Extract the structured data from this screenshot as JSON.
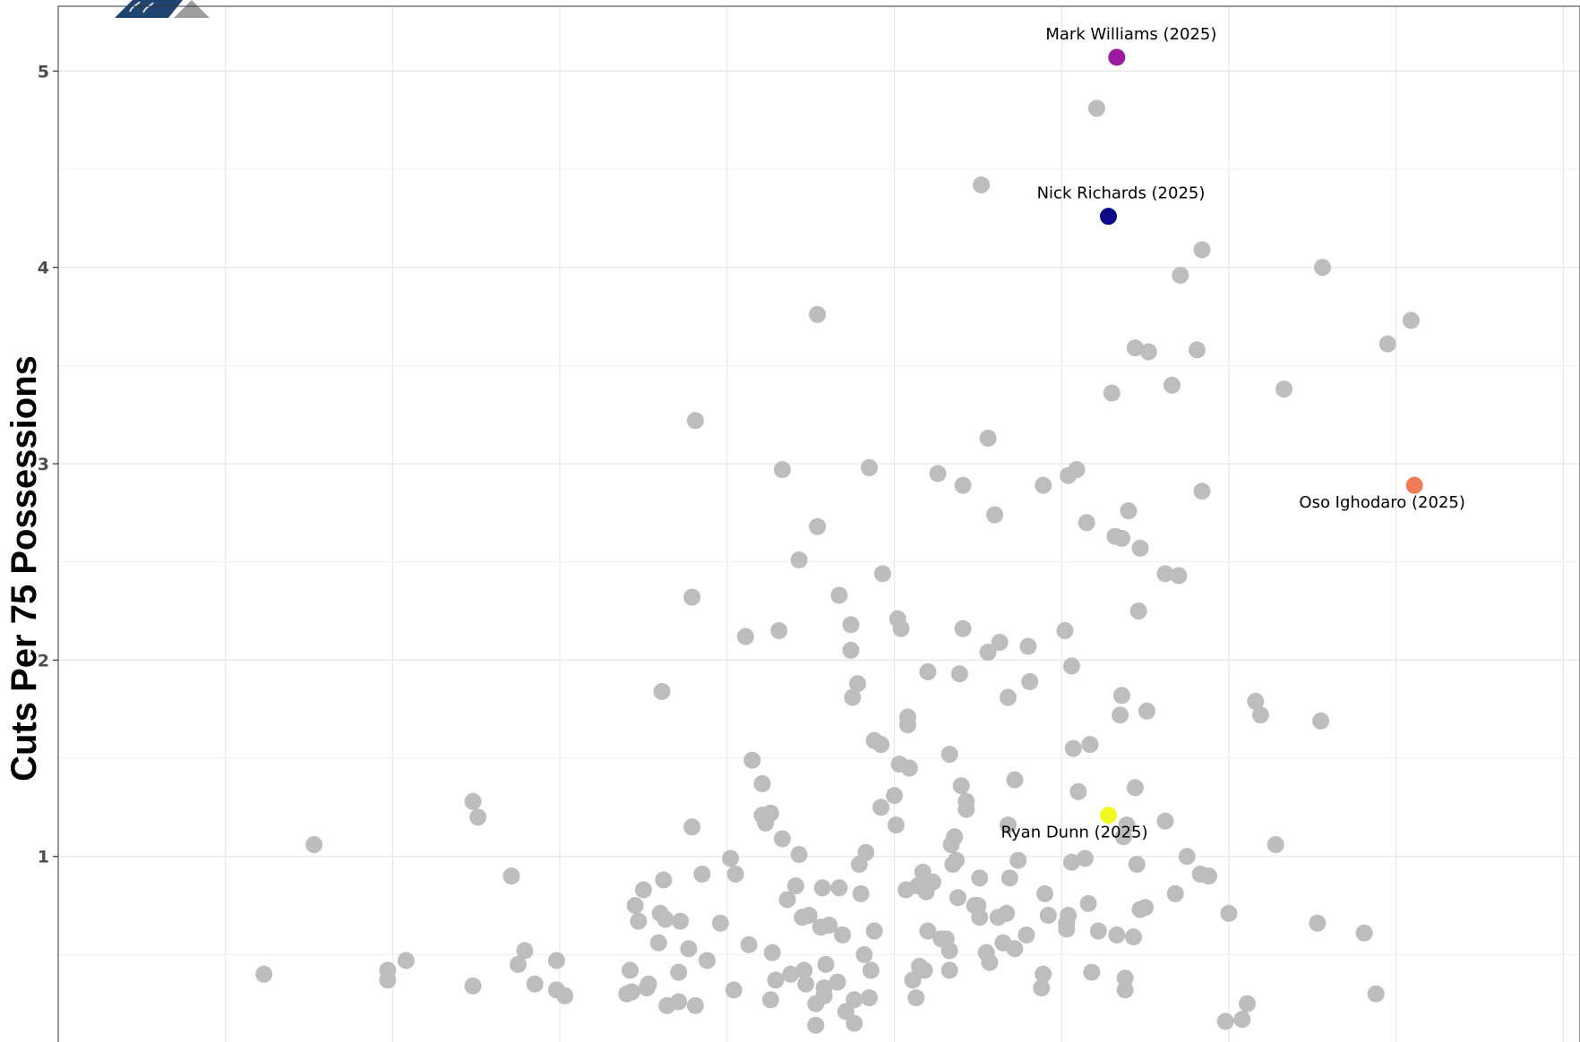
{
  "chart_data": {
    "type": "scatter",
    "title": "",
    "xlabel": "",
    "ylabel": "Cuts Per 75 Possessions",
    "xlim": [
      0.0,
      9.1
    ],
    "ylim": [
      -0.05,
      5.33
    ],
    "y_ticks": [
      1,
      2,
      3,
      4,
      5
    ],
    "y_tick_labels": [
      "1",
      "2",
      "3",
      "4",
      "5"
    ],
    "grid": true,
    "legend": "none",
    "background_color": "#bdbdbd",
    "background_points": [
      [
        1.23,
        0.4
      ],
      [
        1.97,
        0.42
      ],
      [
        1.97,
        0.37
      ],
      [
        2.08,
        0.47
      ],
      [
        1.53,
        1.06
      ],
      [
        2.48,
        0.34
      ],
      [
        2.48,
        1.28
      ],
      [
        2.51,
        1.2
      ],
      [
        2.71,
        0.9
      ],
      [
        2.75,
        0.45
      ],
      [
        2.79,
        0.52
      ],
      [
        2.85,
        0.35
      ],
      [
        2.98,
        0.47
      ],
      [
        2.98,
        0.32
      ],
      [
        3.03,
        0.29
      ],
      [
        3.4,
        0.3
      ],
      [
        3.42,
        0.42
      ],
      [
        3.43,
        0.31
      ],
      [
        3.45,
        0.75
      ],
      [
        3.47,
        0.67
      ],
      [
        3.5,
        0.83
      ],
      [
        3.52,
        0.33
      ],
      [
        3.53,
        0.35
      ],
      [
        3.59,
        0.56
      ],
      [
        3.6,
        0.71
      ],
      [
        3.62,
        0.88
      ],
      [
        3.63,
        0.68
      ],
      [
        3.64,
        0.24
      ],
      [
        3.61,
        1.84
      ],
      [
        3.71,
        0.26
      ],
      [
        3.71,
        0.41
      ],
      [
        3.72,
        0.67
      ],
      [
        3.77,
        0.53
      ],
      [
        3.81,
        0.24
      ],
      [
        3.79,
        1.15
      ],
      [
        3.79,
        2.32
      ],
      [
        3.81,
        3.22
      ],
      [
        3.85,
        0.91
      ],
      [
        3.88,
        0.47
      ],
      [
        3.96,
        0.66
      ],
      [
        4.02,
        0.99
      ],
      [
        4.04,
        0.32
      ],
      [
        4.05,
        0.91
      ],
      [
        4.11,
        2.12
      ],
      [
        4.13,
        0.55
      ],
      [
        4.15,
        1.49
      ],
      [
        4.21,
        1.37
      ],
      [
        4.21,
        1.21
      ],
      [
        4.23,
        1.17
      ],
      [
        4.26,
        0.27
      ],
      [
        4.26,
        1.22
      ],
      [
        4.27,
        0.51
      ],
      [
        4.29,
        0.37
      ],
      [
        4.31,
        2.15
      ],
      [
        4.33,
        2.97
      ],
      [
        4.33,
        1.09
      ],
      [
        4.36,
        0.78
      ],
      [
        4.38,
        0.4
      ],
      [
        4.41,
        0.85
      ],
      [
        4.43,
        1.01
      ],
      [
        4.43,
        2.51
      ],
      [
        4.45,
        0.69
      ],
      [
        4.46,
        0.42
      ],
      [
        4.47,
        0.35
      ],
      [
        4.49,
        0.7
      ],
      [
        4.53,
        0.25
      ],
      [
        4.53,
        0.14
      ],
      [
        4.54,
        3.76
      ],
      [
        4.54,
        2.68
      ],
      [
        4.56,
        0.64
      ],
      [
        4.57,
        0.84
      ],
      [
        4.58,
        0.33
      ],
      [
        4.58,
        0.29
      ],
      [
        4.59,
        0.45
      ],
      [
        4.61,
        0.65
      ],
      [
        4.66,
        0.36
      ],
      [
        4.67,
        2.33
      ],
      [
        4.67,
        0.84
      ],
      [
        4.69,
        0.6
      ],
      [
        4.71,
        0.21
      ],
      [
        4.74,
        2.18
      ],
      [
        4.74,
        2.05
      ],
      [
        4.75,
        1.81
      ],
      [
        4.76,
        0.27
      ],
      [
        4.76,
        0.15
      ],
      [
        4.78,
        1.88
      ],
      [
        4.79,
        0.96
      ],
      [
        4.8,
        0.81
      ],
      [
        4.82,
        0.5
      ],
      [
        4.83,
        1.02
      ],
      [
        4.85,
        0.28
      ],
      [
        4.85,
        2.98
      ],
      [
        4.86,
        0.42
      ],
      [
        4.88,
        0.62
      ],
      [
        4.88,
        1.59
      ],
      [
        4.92,
        1.57
      ],
      [
        4.92,
        1.25
      ],
      [
        4.93,
        2.44
      ],
      [
        5.0,
        1.31
      ],
      [
        5.01,
        1.16
      ],
      [
        5.02,
        2.21
      ],
      [
        5.03,
        1.47
      ],
      [
        5.04,
        2.16
      ],
      [
        5.07,
        0.83
      ],
      [
        5.08,
        1.67
      ],
      [
        5.08,
        1.71
      ],
      [
        5.09,
        1.45
      ],
      [
        5.11,
        0.37
      ],
      [
        5.13,
        0.28
      ],
      [
        5.14,
        0.85
      ],
      [
        5.15,
        0.44
      ],
      [
        5.17,
        0.92
      ],
      [
        5.18,
        0.42
      ],
      [
        5.19,
        0.82
      ],
      [
        5.2,
        0.62
      ],
      [
        5.2,
        1.94
      ],
      [
        5.23,
        0.87
      ],
      [
        5.26,
        2.95
      ],
      [
        5.28,
        0.58
      ],
      [
        5.31,
        0.58
      ],
      [
        5.33,
        0.52
      ],
      [
        5.33,
        1.52
      ],
      [
        5.33,
        0.42
      ],
      [
        5.34,
        1.06
      ],
      [
        5.35,
        0.96
      ],
      [
        5.36,
        1.1
      ],
      [
        5.37,
        0.98
      ],
      [
        5.38,
        0.79
      ],
      [
        5.39,
        1.93
      ],
      [
        5.4,
        1.36
      ],
      [
        5.41,
        2.16
      ],
      [
        5.41,
        2.89
      ],
      [
        5.43,
        1.28
      ],
      [
        5.43,
        1.24
      ],
      [
        5.48,
        0.75
      ],
      [
        5.5,
        0.75
      ],
      [
        5.51,
        0.89
      ],
      [
        5.51,
        0.69
      ],
      [
        5.52,
        4.42
      ],
      [
        5.55,
        0.51
      ],
      [
        5.56,
        3.13
      ],
      [
        5.56,
        2.04
      ],
      [
        5.57,
        0.46
      ],
      [
        5.6,
        2.74
      ],
      [
        5.62,
        0.69
      ],
      [
        5.63,
        2.09
      ],
      [
        5.65,
        0.56
      ],
      [
        5.67,
        0.71
      ],
      [
        5.68,
        1.81
      ],
      [
        5.68,
        1.16
      ],
      [
        5.69,
        0.89
      ],
      [
        5.72,
        1.39
      ],
      [
        5.72,
        0.53
      ],
      [
        5.74,
        0.98
      ],
      [
        5.79,
        0.6
      ],
      [
        5.8,
        2.07
      ],
      [
        5.81,
        1.89
      ],
      [
        5.88,
        0.33
      ],
      [
        5.89,
        0.4
      ],
      [
        5.89,
        2.89
      ],
      [
        5.9,
        0.81
      ],
      [
        5.92,
        0.7
      ],
      [
        6.02,
        2.15
      ],
      [
        6.03,
        0.66
      ],
      [
        6.03,
        0.63
      ],
      [
        6.04,
        2.94
      ],
      [
        6.04,
        0.7
      ],
      [
        6.06,
        1.97
      ],
      [
        6.06,
        0.97
      ],
      [
        6.07,
        1.55
      ],
      [
        6.09,
        2.97
      ],
      [
        6.1,
        1.33
      ],
      [
        6.14,
        0.99
      ],
      [
        6.15,
        2.7
      ],
      [
        6.16,
        0.76
      ],
      [
        6.17,
        1.57
      ],
      [
        6.18,
        0.41
      ],
      [
        6.21,
        4.81
      ],
      [
        6.22,
        0.62
      ],
      [
        6.3,
        3.36
      ],
      [
        6.32,
        2.63
      ],
      [
        6.33,
        0.6
      ],
      [
        6.35,
        1.72
      ],
      [
        6.36,
        1.82
      ],
      [
        6.36,
        2.62
      ],
      [
        6.37,
        1.1
      ],
      [
        6.38,
        0.38
      ],
      [
        6.38,
        0.32
      ],
      [
        6.39,
        1.16
      ],
      [
        6.4,
        2.76
      ],
      [
        6.43,
        0.59
      ],
      [
        6.44,
        3.59
      ],
      [
        6.44,
        1.35
      ],
      [
        6.45,
        0.96
      ],
      [
        6.46,
        2.25
      ],
      [
        6.47,
        2.57
      ],
      [
        6.47,
        0.73
      ],
      [
        6.5,
        0.74
      ],
      [
        6.51,
        1.74
      ],
      [
        6.52,
        3.57
      ],
      [
        6.62,
        2.44
      ],
      [
        6.62,
        1.18
      ],
      [
        6.66,
        3.4
      ],
      [
        6.68,
        0.81
      ],
      [
        6.7,
        2.43
      ],
      [
        6.71,
        3.96
      ],
      [
        6.75,
        1.0
      ],
      [
        6.81,
        3.58
      ],
      [
        6.83,
        0.91
      ],
      [
        6.84,
        4.09
      ],
      [
        6.84,
        2.86
      ],
      [
        6.88,
        0.9
      ],
      [
        6.98,
        0.16
      ],
      [
        7.0,
        0.71
      ],
      [
        7.08,
        0.17
      ],
      [
        7.11,
        0.25
      ],
      [
        7.16,
        1.79
      ],
      [
        7.19,
        1.72
      ],
      [
        7.28,
        1.06
      ],
      [
        7.33,
        3.38
      ],
      [
        7.53,
        0.66
      ],
      [
        7.55,
        1.69
      ],
      [
        7.56,
        4.0
      ],
      [
        7.81,
        0.61
      ],
      [
        7.88,
        0.3
      ],
      [
        7.95,
        3.61
      ],
      [
        8.09,
        3.73
      ]
    ],
    "highlighted": [
      {
        "name": "Mark Williams (2025)",
        "x": 6.33,
        "y": 5.07,
        "color": "#9b1b9f"
      },
      {
        "name": "Nick Richards (2025)",
        "x": 6.28,
        "y": 4.26,
        "color": "#0d0887"
      },
      {
        "name": "Oso Ighodaro (2025)",
        "x": 8.11,
        "y": 2.89,
        "color": "#f07c57"
      },
      {
        "name": "Ryan Dunn (2025)",
        "x": 6.28,
        "y": 1.21,
        "color": "#f0f921"
      }
    ]
  },
  "logo": {
    "name": "team-logo"
  }
}
